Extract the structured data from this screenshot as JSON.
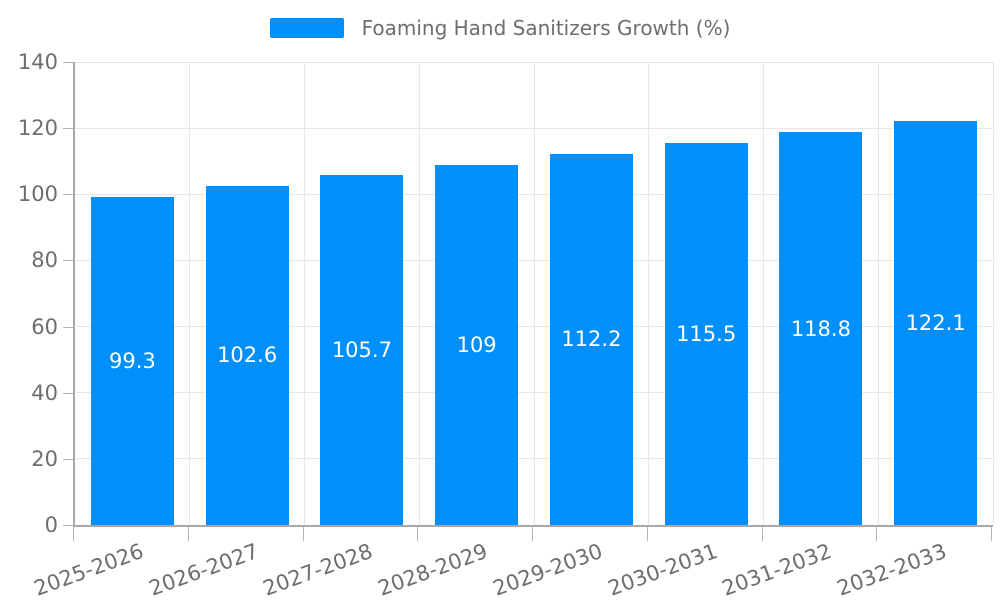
{
  "legend": {
    "label": "Foaming Hand Sanitizers Growth (%)"
  },
  "chart_data": {
    "type": "bar",
    "title": "Foaming Hand Sanitizers Growth (%)",
    "categories": [
      "2025-2026",
      "2026-2027",
      "2027-2028",
      "2028-2029",
      "2029-2030",
      "2030-2031",
      "2031-2032",
      "2032-2033"
    ],
    "series": [
      {
        "name": "Foaming Hand Sanitizers Growth (%)",
        "values": [
          99.3,
          102.6,
          105.7,
          109,
          112.2,
          115.5,
          118.8,
          122.1
        ]
      }
    ],
    "data_labels": [
      "99.3",
      "102.6",
      "105.7",
      "109",
      "112.2",
      "115.5",
      "118.8",
      "122.1"
    ],
    "xlabel": "",
    "ylabel": "",
    "ylim": [
      0,
      140
    ],
    "y_ticks": [
      0,
      20,
      40,
      60,
      80,
      100,
      120,
      140
    ],
    "grid": "on",
    "legend_position": "top-center",
    "colors": {
      "bar": "#008FFB",
      "grid": "#e7e7e7",
      "axis": "#a8a8a8",
      "tick": "#b5b5b5",
      "tick_label": "#6e6e6e",
      "data_label": "#ffffff",
      "background": "#ffffff"
    }
  }
}
